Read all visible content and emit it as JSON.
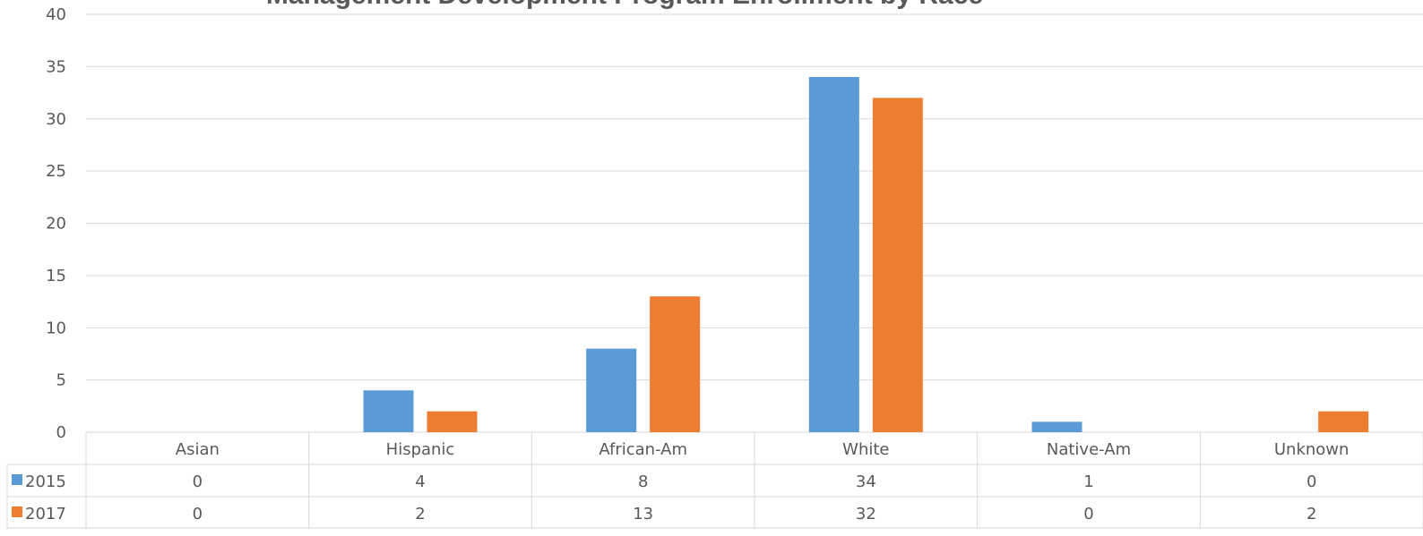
{
  "chart_data": {
    "type": "bar",
    "title": "Management Development Program Enrollment by Race",
    "categories": [
      "Asian",
      "Hispanic",
      "African-Am",
      "White",
      "Native-Am",
      "Unknown"
    ],
    "series": [
      {
        "name": "2015",
        "values": [
          0,
          4,
          8,
          34,
          1,
          0
        ],
        "color": "#5b9bd5"
      },
      {
        "name": "2017",
        "values": [
          0,
          2,
          13,
          32,
          0,
          2
        ],
        "color": "#ed7d31"
      }
    ],
    "ylim": [
      0,
      40
    ],
    "yticks": [
      0,
      5,
      10,
      15,
      20,
      25,
      30,
      35,
      40
    ],
    "grid": true,
    "legend": "data-table"
  }
}
